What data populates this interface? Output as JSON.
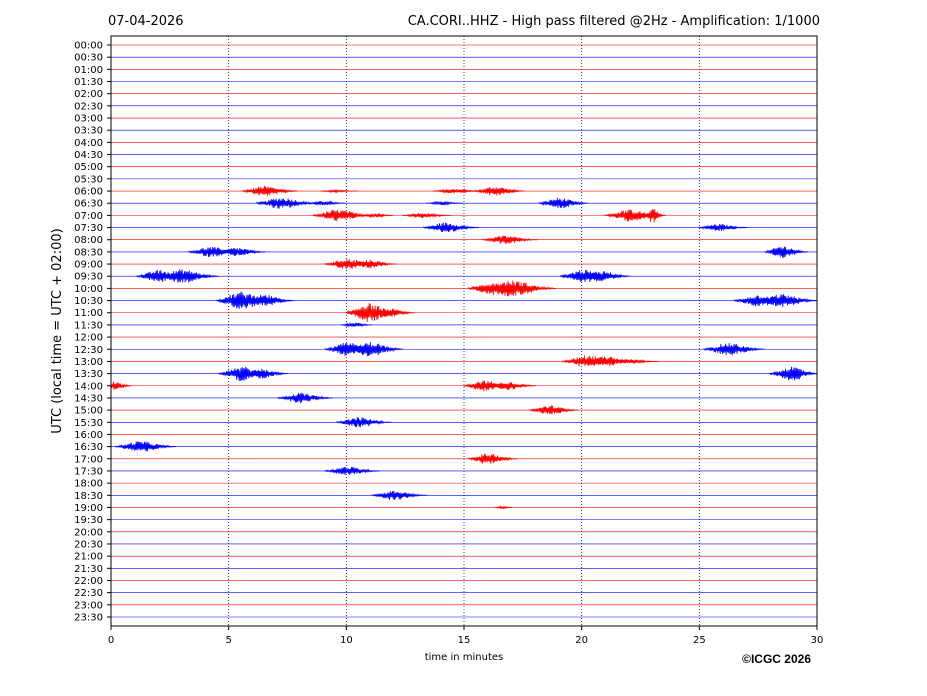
{
  "header": {
    "date": "07-04-2026",
    "title": "CA.CORI..HHZ - High pass filtered @2Hz - Amplification: 1/1000"
  },
  "footer": {
    "copyright": "©ICGC 2026"
  },
  "chart_data": {
    "type": "helicorder",
    "title": "CA.CORI..HHZ - High pass filtered @2Hz - Amplification: 1/1000",
    "xlabel": "time in minutes",
    "ylabel": "UTC (local time = UTC + 02:00)",
    "xlim": [
      0,
      30
    ],
    "xticks": [
      0,
      5,
      10,
      15,
      20,
      25,
      30
    ],
    "grid": "vertical dotted lines every 5 minutes",
    "trace_colors": [
      "#ff0000",
      "#0000ff"
    ],
    "rows": [
      "00:00",
      "00:30",
      "01:00",
      "01:30",
      "02:00",
      "02:30",
      "03:00",
      "03:30",
      "04:00",
      "04:30",
      "05:00",
      "05:30",
      "06:00",
      "06:30",
      "07:00",
      "07:30",
      "08:00",
      "08:30",
      "09:00",
      "09:30",
      "10:00",
      "10:30",
      "11:00",
      "11:30",
      "12:00",
      "12:30",
      "13:00",
      "13:30",
      "14:00",
      "14:30",
      "15:00",
      "15:30",
      "16:00",
      "16:30",
      "17:00",
      "17:30",
      "18:00",
      "18:30",
      "19:00",
      "19:30",
      "20:00",
      "20:30",
      "21:00",
      "21:30",
      "22:00",
      "22:30",
      "23:00",
      "23:30"
    ],
    "bursts": [
      {
        "row": "06:00",
        "minute": 6.5,
        "amplitude": 0.7,
        "width": 0.9
      },
      {
        "row": "06:00",
        "minute": 9.5,
        "amplitude": 0.15,
        "width": 0.6
      },
      {
        "row": "06:00",
        "minute": 14.5,
        "amplitude": 0.3,
        "width": 0.8
      },
      {
        "row": "06:00",
        "minute": 16.3,
        "amplitude": 0.65,
        "width": 0.8
      },
      {
        "row": "06:30",
        "minute": 7.2,
        "amplitude": 0.8,
        "width": 1.0
      },
      {
        "row": "06:30",
        "minute": 9.0,
        "amplitude": 0.3,
        "width": 0.6
      },
      {
        "row": "06:30",
        "minute": 14.0,
        "amplitude": 0.25,
        "width": 0.6
      },
      {
        "row": "06:30",
        "minute": 19.0,
        "amplitude": 0.75,
        "width": 0.8
      },
      {
        "row": "07:00",
        "minute": 9.6,
        "amplitude": 0.8,
        "width": 1.0
      },
      {
        "row": "07:00",
        "minute": 11.2,
        "amplitude": 0.3,
        "width": 0.5
      },
      {
        "row": "07:00",
        "minute": 13.2,
        "amplitude": 0.35,
        "width": 0.8
      },
      {
        "row": "07:00",
        "minute": 22.0,
        "amplitude": 0.8,
        "width": 1.0
      },
      {
        "row": "07:00",
        "minute": 23.0,
        "amplitude": 1.1,
        "width": 0.3
      },
      {
        "row": "07:30",
        "minute": 14.2,
        "amplitude": 0.7,
        "width": 0.9
      },
      {
        "row": "07:30",
        "minute": 25.8,
        "amplitude": 0.5,
        "width": 0.8
      },
      {
        "row": "08:00",
        "minute": 16.7,
        "amplitude": 0.6,
        "width": 0.9
      },
      {
        "row": "08:30",
        "minute": 4.2,
        "amplitude": 0.7,
        "width": 0.9
      },
      {
        "row": "08:30",
        "minute": 5.3,
        "amplitude": 0.6,
        "width": 0.8
      },
      {
        "row": "08:30",
        "minute": 28.5,
        "amplitude": 0.85,
        "width": 0.7
      },
      {
        "row": "09:00",
        "minute": 10.0,
        "amplitude": 0.75,
        "width": 0.9
      },
      {
        "row": "09:00",
        "minute": 11.0,
        "amplitude": 0.6,
        "width": 0.7
      },
      {
        "row": "09:30",
        "minute": 2.0,
        "amplitude": 0.85,
        "width": 0.9
      },
      {
        "row": "09:30",
        "minute": 3.0,
        "amplitude": 0.95,
        "width": 1.0
      },
      {
        "row": "09:30",
        "minute": 20.0,
        "amplitude": 0.9,
        "width": 0.9
      },
      {
        "row": "09:30",
        "minute": 20.8,
        "amplitude": 0.8,
        "width": 0.8
      },
      {
        "row": "10:00",
        "minute": 16.2,
        "amplitude": 0.9,
        "width": 1.0
      },
      {
        "row": "10:00",
        "minute": 17.0,
        "amplitude": 1.1,
        "width": 1.2
      },
      {
        "row": "10:30",
        "minute": 5.5,
        "amplitude": 1.2,
        "width": 1.0
      },
      {
        "row": "10:30",
        "minute": 6.5,
        "amplitude": 0.8,
        "width": 0.8
      },
      {
        "row": "10:30",
        "minute": 27.5,
        "amplitude": 0.8,
        "width": 1.0
      },
      {
        "row": "10:30",
        "minute": 28.5,
        "amplitude": 0.9,
        "width": 1.0
      },
      {
        "row": "11:00",
        "minute": 10.9,
        "amplitude": 1.3,
        "width": 0.9
      },
      {
        "row": "11:00",
        "minute": 11.8,
        "amplitude": 0.6,
        "width": 0.7
      },
      {
        "row": "11:30",
        "minute": 10.3,
        "amplitude": 0.35,
        "width": 0.5
      },
      {
        "row": "12:30",
        "minute": 10.0,
        "amplitude": 0.9,
        "width": 0.9
      },
      {
        "row": "12:30",
        "minute": 11.0,
        "amplitude": 1.0,
        "width": 0.9
      },
      {
        "row": "12:30",
        "minute": 26.2,
        "amplitude": 0.85,
        "width": 1.0
      },
      {
        "row": "13:00",
        "minute": 20.2,
        "amplitude": 0.85,
        "width": 1.0
      },
      {
        "row": "13:00",
        "minute": 21.0,
        "amplitude": 0.7,
        "width": 0.8
      },
      {
        "row": "13:00",
        "minute": 22.0,
        "amplitude": 0.3,
        "width": 0.8
      },
      {
        "row": "13:30",
        "minute": 5.5,
        "amplitude": 1.0,
        "width": 0.9
      },
      {
        "row": "13:30",
        "minute": 6.4,
        "amplitude": 0.7,
        "width": 0.7
      },
      {
        "row": "13:30",
        "minute": 29.0,
        "amplitude": 1.0,
        "width": 1.0
      },
      {
        "row": "14:00",
        "minute": 0.1,
        "amplitude": 0.6,
        "width": 0.5
      },
      {
        "row": "14:00",
        "minute": 15.8,
        "amplitude": 0.75,
        "width": 0.8
      },
      {
        "row": "14:00",
        "minute": 16.8,
        "amplitude": 0.6,
        "width": 0.8
      },
      {
        "row": "14:30",
        "minute": 8.0,
        "amplitude": 0.7,
        "width": 0.9
      },
      {
        "row": "15:00",
        "minute": 18.6,
        "amplitude": 0.65,
        "width": 0.8
      },
      {
        "row": "15:30",
        "minute": 10.5,
        "amplitude": 0.7,
        "width": 0.9
      },
      {
        "row": "16:30",
        "minute": 1.2,
        "amplitude": 0.75,
        "width": 1.0
      },
      {
        "row": "17:00",
        "minute": 16.0,
        "amplitude": 0.75,
        "width": 0.8
      },
      {
        "row": "17:30",
        "minute": 10.0,
        "amplitude": 0.6,
        "width": 0.9
      },
      {
        "row": "18:30",
        "minute": 12.0,
        "amplitude": 0.65,
        "width": 0.9
      },
      {
        "row": "19:00",
        "minute": 16.6,
        "amplitude": 0.15,
        "width": 0.3
      }
    ]
  }
}
